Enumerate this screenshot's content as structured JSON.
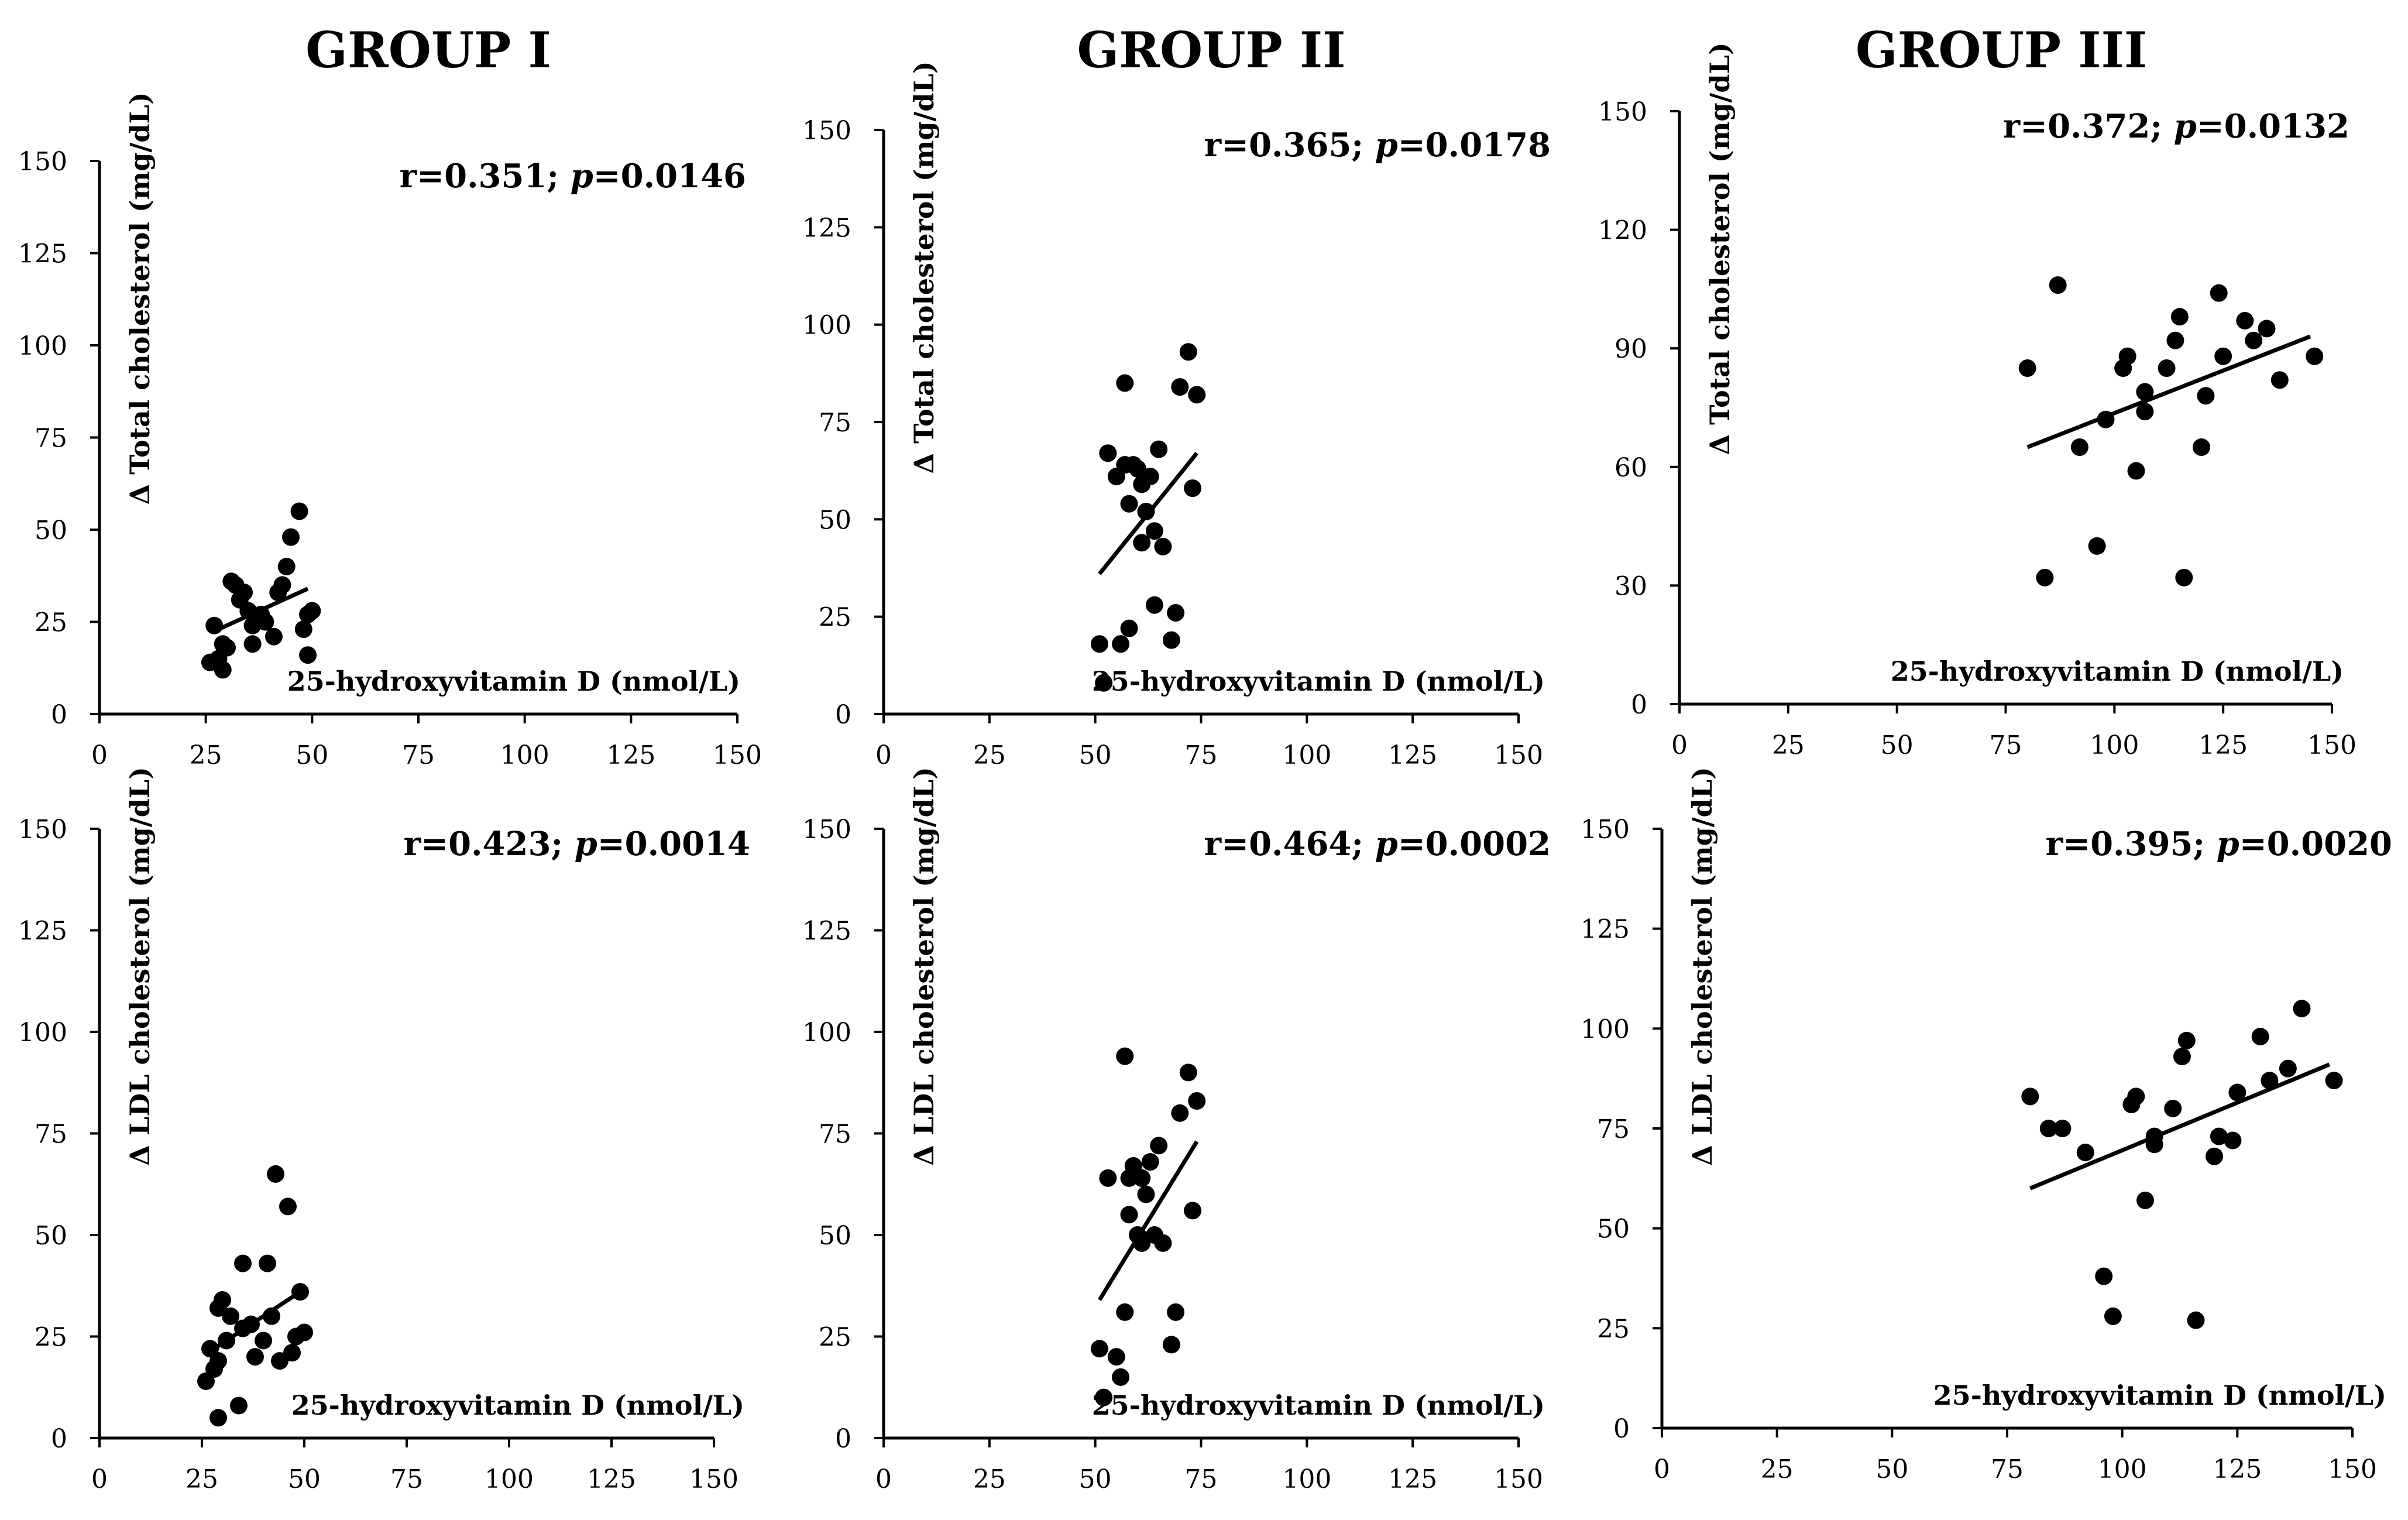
{
  "groups": [
    "GROUP I",
    "GROUP II",
    "GROUP III"
  ],
  "chart_data": [
    {
      "type": "scatter",
      "group": "GROUP I",
      "metric": "total",
      "xlabel": "25-hydroxyvitamin D (nmol/L)",
      "ylabel": "Δ  Total cholesterol (mg/dL)",
      "stat_r": "r=0.351; ",
      "stat_p_symbol": "p",
      "stat_p_value": "=0.0146",
      "xlim": [
        0,
        150
      ],
      "ylim": [
        0,
        150
      ],
      "xticks": [
        "0",
        "25",
        "50",
        "75",
        "100",
        "125",
        "150"
      ],
      "yticks": [
        "0",
        "25",
        "50",
        "75",
        "100",
        "125",
        "150"
      ],
      "trend": [
        [
          28,
          23
        ],
        [
          49,
          34
        ]
      ],
      "points": [
        [
          26,
          14
        ],
        [
          27,
          24
        ],
        [
          28,
          15
        ],
        [
          29,
          12
        ],
        [
          30,
          18
        ],
        [
          31,
          36
        ],
        [
          32,
          35
        ],
        [
          33,
          31
        ],
        [
          34,
          33
        ],
        [
          35,
          28
        ],
        [
          36,
          24
        ],
        [
          36,
          19
        ],
        [
          38,
          27
        ],
        [
          39,
          25
        ],
        [
          41,
          21
        ],
        [
          42,
          33
        ],
        [
          43,
          35
        ],
        [
          44,
          40
        ],
        [
          45,
          48
        ],
        [
          47,
          55
        ],
        [
          48,
          23
        ],
        [
          49,
          27
        ],
        [
          50,
          28
        ],
        [
          49,
          16
        ],
        [
          29,
          19
        ]
      ]
    },
    {
      "type": "scatter",
      "group": "GROUP II",
      "metric": "total",
      "xlabel": "25-hydroxyvitamin D (nmol/L)",
      "ylabel": "Δ  Total cholesterol (mg/dL)",
      "stat_r": "r=0.365; ",
      "stat_p_symbol": "p",
      "stat_p_value": "=0.0178",
      "xlim": [
        0,
        150
      ],
      "ylim": [
        0,
        150
      ],
      "xticks": [
        "0",
        "25",
        "50",
        "75",
        "100",
        "125",
        "150"
      ],
      "yticks": [
        "0",
        "25",
        "50",
        "75",
        "100",
        "125",
        "150"
      ],
      "trend": [
        [
          51,
          36
        ],
        [
          74,
          67
        ]
      ],
      "points": [
        [
          51,
          18
        ],
        [
          52,
          8
        ],
        [
          53,
          67
        ],
        [
          55,
          61
        ],
        [
          56,
          18
        ],
        [
          57,
          85
        ],
        [
          57,
          64
        ],
        [
          58,
          22
        ],
        [
          58,
          54
        ],
        [
          59,
          64
        ],
        [
          60,
          63
        ],
        [
          61,
          44
        ],
        [
          61,
          59
        ],
        [
          62,
          52
        ],
        [
          63,
          61
        ],
        [
          64,
          47
        ],
        [
          64,
          28
        ],
        [
          65,
          68
        ],
        [
          66,
          43
        ],
        [
          68,
          19
        ],
        [
          69,
          26
        ],
        [
          70,
          84
        ],
        [
          72,
          93
        ],
        [
          73,
          58
        ],
        [
          74,
          82
        ]
      ]
    },
    {
      "type": "scatter",
      "group": "GROUP III",
      "metric": "total",
      "xlabel": "25-hydroxyvitamin D (nmol/L)",
      "ylabel": "Δ  Total cholesterol (mg/dL)",
      "stat_r": "r=0.372; ",
      "stat_p_symbol": "p",
      "stat_p_value": "=0.0132",
      "xlim": [
        0,
        150
      ],
      "ylim": [
        0,
        150
      ],
      "xticks": [
        "0",
        "25",
        "50",
        "75",
        "100",
        "125",
        "150"
      ],
      "yticks": [
        "0",
        "30",
        "60",
        "90",
        "120",
        "150"
      ],
      "trend": [
        [
          80,
          65
        ],
        [
          145,
          93
        ]
      ],
      "points": [
        [
          80,
          85
        ],
        [
          84,
          32
        ],
        [
          87,
          106
        ],
        [
          92,
          65
        ],
        [
          96,
          40
        ],
        [
          98,
          72
        ],
        [
          102,
          85
        ],
        [
          103,
          88
        ],
        [
          105,
          59
        ],
        [
          107,
          79
        ],
        [
          107,
          74
        ],
        [
          112,
          85
        ],
        [
          114,
          92
        ],
        [
          115,
          98
        ],
        [
          116,
          32
        ],
        [
          120,
          65
        ],
        [
          121,
          78
        ],
        [
          124,
          104
        ],
        [
          125,
          88
        ],
        [
          130,
          97
        ],
        [
          132,
          92
        ],
        [
          135,
          95
        ],
        [
          138,
          82
        ],
        [
          146,
          88
        ]
      ]
    },
    {
      "type": "scatter",
      "group": "GROUP I",
      "metric": "ldl",
      "xlabel": "25-hydroxyvitamin D (nmol/L)",
      "ylabel": "Δ  LDL cholesterol (mg/dL)",
      "stat_r": "r=0.423; ",
      "stat_p_symbol": "p",
      "stat_p_value": "=0.0014",
      "xlim": [
        0,
        150
      ],
      "ylim": [
        0,
        150
      ],
      "xticks": [
        "0",
        "25",
        "50",
        "75",
        "100",
        "125",
        "150"
      ],
      "yticks": [
        "0",
        "25",
        "50",
        "75",
        "100",
        "125",
        "150"
      ],
      "trend": [
        [
          28,
          22
        ],
        [
          49,
          36
        ]
      ],
      "points": [
        [
          26,
          14
        ],
        [
          27,
          22
        ],
        [
          28,
          17
        ],
        [
          29,
          19
        ],
        [
          29,
          5
        ],
        [
          30,
          34
        ],
        [
          31,
          24
        ],
        [
          32,
          30
        ],
        [
          34,
          8
        ],
        [
          35,
          27
        ],
        [
          35,
          43
        ],
        [
          37,
          28
        ],
        [
          38,
          20
        ],
        [
          40,
          24
        ],
        [
          41,
          43
        ],
        [
          42,
          30
        ],
        [
          43,
          65
        ],
        [
          44,
          19
        ],
        [
          46,
          57
        ],
        [
          47,
          21
        ],
        [
          48,
          25
        ],
        [
          49,
          36
        ],
        [
          50,
          26
        ],
        [
          29,
          32
        ]
      ]
    },
    {
      "type": "scatter",
      "group": "GROUP II",
      "metric": "ldl",
      "xlabel": "25-hydroxyvitamin D (nmol/L)",
      "ylabel": "Δ  LDL cholesterol (mg/dL)",
      "stat_r": "r=0.464; ",
      "stat_p_symbol": "p",
      "stat_p_value": "=0.0002",
      "xlim": [
        0,
        150
      ],
      "ylim": [
        0,
        150
      ],
      "xticks": [
        "0",
        "25",
        "50",
        "75",
        "100",
        "125",
        "150"
      ],
      "yticks": [
        "0",
        "25",
        "50",
        "75",
        "100",
        "125",
        "150"
      ],
      "trend": [
        [
          51,
          34
        ],
        [
          74,
          73
        ]
      ],
      "points": [
        [
          51,
          22
        ],
        [
          52,
          10
        ],
        [
          53,
          64
        ],
        [
          55,
          20
        ],
        [
          56,
          15
        ],
        [
          57,
          31
        ],
        [
          57,
          94
        ],
        [
          58,
          64
        ],
        [
          58,
          55
        ],
        [
          59,
          67
        ],
        [
          60,
          50
        ],
        [
          61,
          48
        ],
        [
          61,
          64
        ],
        [
          62,
          60
        ],
        [
          63,
          68
        ],
        [
          64,
          50
        ],
        [
          65,
          72
        ],
        [
          66,
          48
        ],
        [
          68,
          23
        ],
        [
          69,
          31
        ],
        [
          70,
          80
        ],
        [
          72,
          90
        ],
        [
          73,
          56
        ],
        [
          74,
          83
        ]
      ]
    },
    {
      "type": "scatter",
      "group": "GROUP III",
      "metric": "ldl",
      "xlabel": "25-hydroxyvitamin D (nmol/L)",
      "ylabel": "Δ  LDL cholesterol (mg/dL)",
      "stat_r": "r=0.395; ",
      "stat_p_symbol": "p",
      "stat_p_value": "=0.0020",
      "xlim": [
        0,
        150
      ],
      "ylim": [
        0,
        150
      ],
      "xticks": [
        "0",
        "25",
        "50",
        "75",
        "100",
        "125",
        "150"
      ],
      "yticks": [
        "0",
        "25",
        "50",
        "75",
        "100",
        "125",
        "150"
      ],
      "trend": [
        [
          80,
          60
        ],
        [
          145,
          91
        ]
      ],
      "points": [
        [
          80,
          83
        ],
        [
          84,
          75
        ],
        [
          87,
          75
        ],
        [
          92,
          69
        ],
        [
          96,
          38
        ],
        [
          98,
          28
        ],
        [
          102,
          81
        ],
        [
          103,
          83
        ],
        [
          105,
          57
        ],
        [
          107,
          73
        ],
        [
          107,
          71
        ],
        [
          111,
          80
        ],
        [
          113,
          93
        ],
        [
          114,
          97
        ],
        [
          116,
          27
        ],
        [
          120,
          68
        ],
        [
          121,
          73
        ],
        [
          124,
          72
        ],
        [
          125,
          84
        ],
        [
          130,
          98
        ],
        [
          132,
          87
        ],
        [
          136,
          90
        ],
        [
          139,
          105
        ],
        [
          146,
          87
        ]
      ]
    }
  ]
}
